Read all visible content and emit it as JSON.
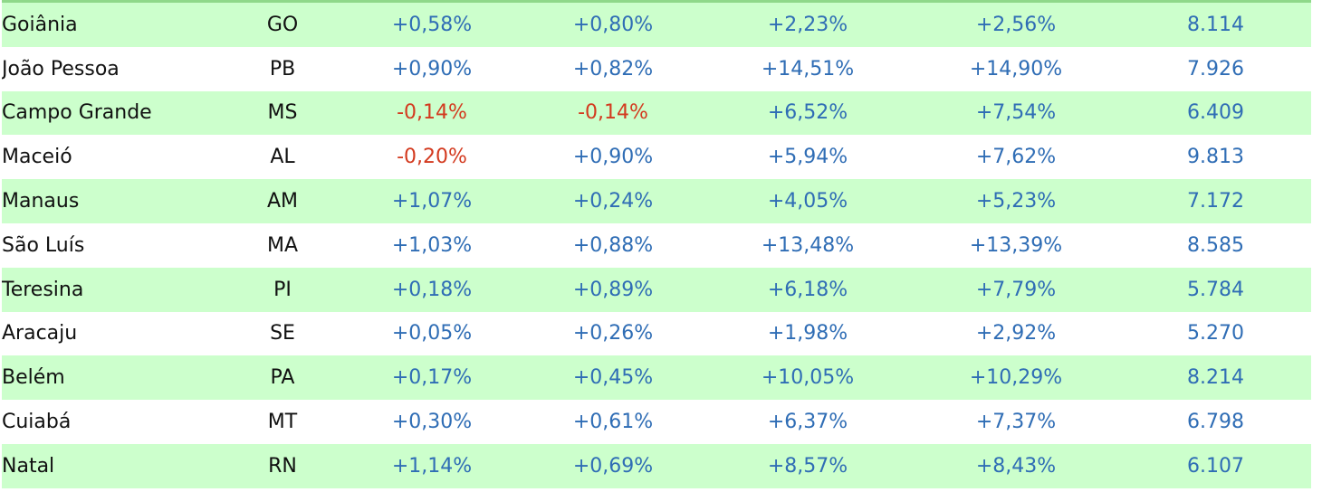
{
  "colors": {
    "row_green": "#ccffcc",
    "row_white": "#ffffff",
    "positive_text": "#2f6db5",
    "negative_text": "#d33a1f",
    "top_rule": "#8fd88a"
  },
  "rows": [
    {
      "city": "Goiânia",
      "uf": "GO",
      "v1": "+0,58%",
      "v2": "+0,80%",
      "v3": "+2,23%",
      "v4": "+2,56%",
      "price": "8.114"
    },
    {
      "city": "João Pessoa",
      "uf": "PB",
      "v1": "+0,90%",
      "v2": "+0,82%",
      "v3": "+14,51%",
      "v4": "+14,90%",
      "price": "7.926"
    },
    {
      "city": "Campo Grande",
      "uf": "MS",
      "v1": "-0,14%",
      "v2": "-0,14%",
      "v3": "+6,52%",
      "v4": "+7,54%",
      "price": "6.409"
    },
    {
      "city": "Maceió",
      "uf": "AL",
      "v1": "-0,20%",
      "v2": "+0,90%",
      "v3": "+5,94%",
      "v4": "+7,62%",
      "price": "9.813"
    },
    {
      "city": "Manaus",
      "uf": "AM",
      "v1": "+1,07%",
      "v2": "+0,24%",
      "v3": "+4,05%",
      "v4": "+5,23%",
      "price": "7.172"
    },
    {
      "city": "São Luís",
      "uf": "MA",
      "v1": "+1,03%",
      "v2": "+0,88%",
      "v3": "+13,48%",
      "v4": "+13,39%",
      "price": "8.585"
    },
    {
      "city": "Teresina",
      "uf": "PI",
      "v1": "+0,18%",
      "v2": "+0,89%",
      "v3": "+6,18%",
      "v4": "+7,79%",
      "price": "5.784"
    },
    {
      "city": "Aracaju",
      "uf": "SE",
      "v1": "+0,05%",
      "v2": "+0,26%",
      "v3": "+1,98%",
      "v4": "+2,92%",
      "price": "5.270"
    },
    {
      "city": "Belém",
      "uf": "PA",
      "v1": "+0,17%",
      "v2": "+0,45%",
      "v3": "+10,05%",
      "v4": "+10,29%",
      "price": "8.214"
    },
    {
      "city": "Cuiabá",
      "uf": "MT",
      "v1": "+0,30%",
      "v2": "+0,61%",
      "v3": "+6,37%",
      "v4": "+7,37%",
      "price": "6.798"
    },
    {
      "city": "Natal",
      "uf": "RN",
      "v1": "+1,14%",
      "v2": "+0,69%",
      "v3": "+8,57%",
      "v4": "+8,43%",
      "price": "6.107"
    }
  ]
}
